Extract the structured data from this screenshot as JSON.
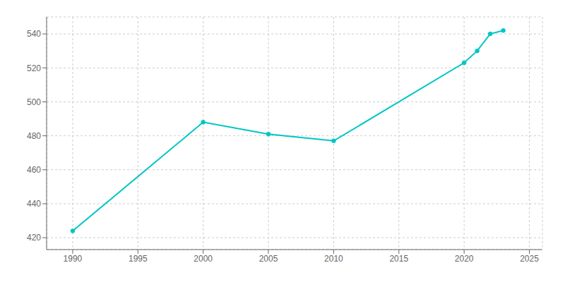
{
  "chart_data": {
    "type": "line",
    "x": [
      1990,
      2000,
      2005,
      2010,
      2020,
      2021,
      2022,
      2023
    ],
    "values": [
      424,
      488,
      481,
      477,
      523,
      530,
      540,
      542
    ],
    "color": "#00C5C5",
    "marker": "circle",
    "xlim": [
      1988,
      2026
    ],
    "ylim": [
      413,
      550
    ],
    "xticks": [
      1990,
      1995,
      2000,
      2005,
      2010,
      2015,
      2020,
      2025
    ],
    "yticks": [
      420,
      440,
      460,
      480,
      500,
      520,
      540
    ],
    "grid": true
  }
}
